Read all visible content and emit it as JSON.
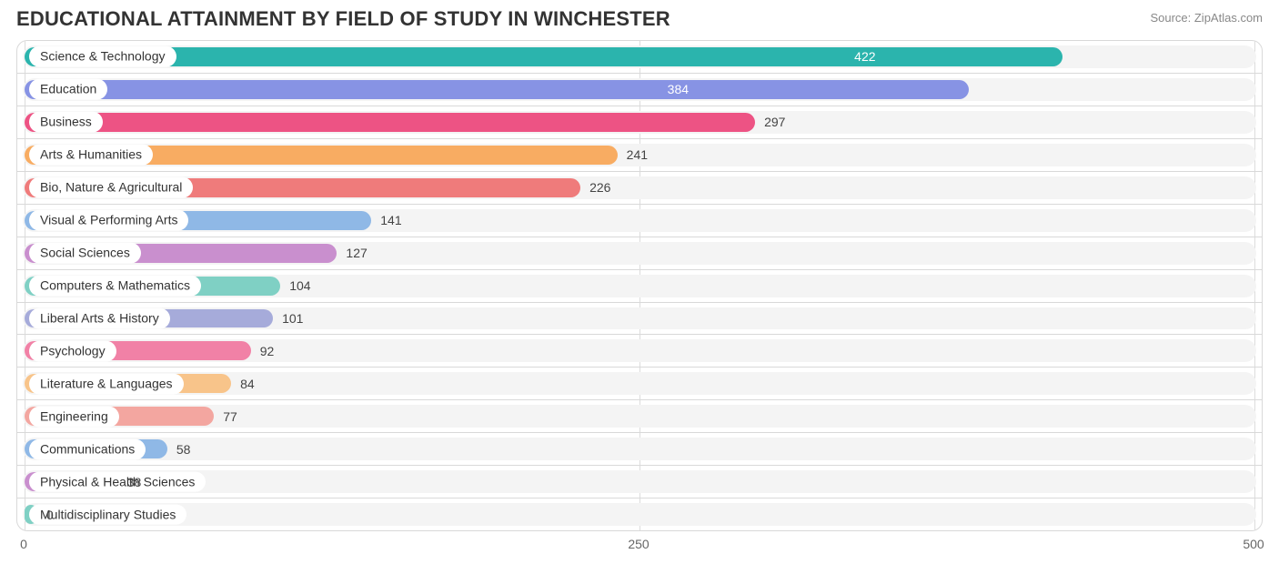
{
  "title": "EDUCATIONAL ATTAINMENT BY FIELD OF STUDY IN WINCHESTER",
  "source": "Source: ZipAtlas.com",
  "chart": {
    "type": "bar",
    "orientation": "horizontal",
    "xlim": [
      0,
      500
    ],
    "xtick_step": 250,
    "xticks": [
      0,
      250,
      500
    ],
    "track_color": "#f4f4f4",
    "background_color": "#ffffff",
    "border_color": "#d9d9d9",
    "grid_color": "#dcdcdc",
    "pill_bg": "#ffffff",
    "label_color": "#333333",
    "value_color_outside": "#444444",
    "value_color_inside": "#ffffff",
    "title_fontsize": 22,
    "label_fontsize": 14,
    "rows": [
      {
        "label": "Science & Technology",
        "value": 422,
        "color": "#2bb4ad",
        "value_inside": true
      },
      {
        "label": "Education",
        "value": 384,
        "color": "#8793e4",
        "value_inside": true
      },
      {
        "label": "Business",
        "value": 297,
        "color": "#ed5384",
        "value_inside": false
      },
      {
        "label": "Arts & Humanities",
        "value": 241,
        "color": "#f8ac62",
        "value_inside": false
      },
      {
        "label": "Bio, Nature & Agricultural",
        "value": 226,
        "color": "#ef7b7b",
        "value_inside": false
      },
      {
        "label": "Visual & Performing Arts",
        "value": 141,
        "color": "#8fb8e6",
        "value_inside": false
      },
      {
        "label": "Social Sciences",
        "value": 127,
        "color": "#c98fce",
        "value_inside": false
      },
      {
        "label": "Computers & Mathematics",
        "value": 104,
        "color": "#7fd0c4",
        "value_inside": false
      },
      {
        "label": "Liberal Arts & History",
        "value": 101,
        "color": "#a6abda",
        "value_inside": false
      },
      {
        "label": "Psychology",
        "value": 92,
        "color": "#f181a6",
        "value_inside": false
      },
      {
        "label": "Literature & Languages",
        "value": 84,
        "color": "#f8c48a",
        "value_inside": false
      },
      {
        "label": "Engineering",
        "value": 77,
        "color": "#f3a6a0",
        "value_inside": false
      },
      {
        "label": "Communications",
        "value": 58,
        "color": "#8fb8e6",
        "value_inside": false
      },
      {
        "label": "Physical & Health Sciences",
        "value": 38,
        "color": "#c98fce",
        "value_inside": false
      },
      {
        "label": "Multidisciplinary Studies",
        "value": 0,
        "color": "#7fd0c4",
        "value_inside": false
      }
    ]
  }
}
